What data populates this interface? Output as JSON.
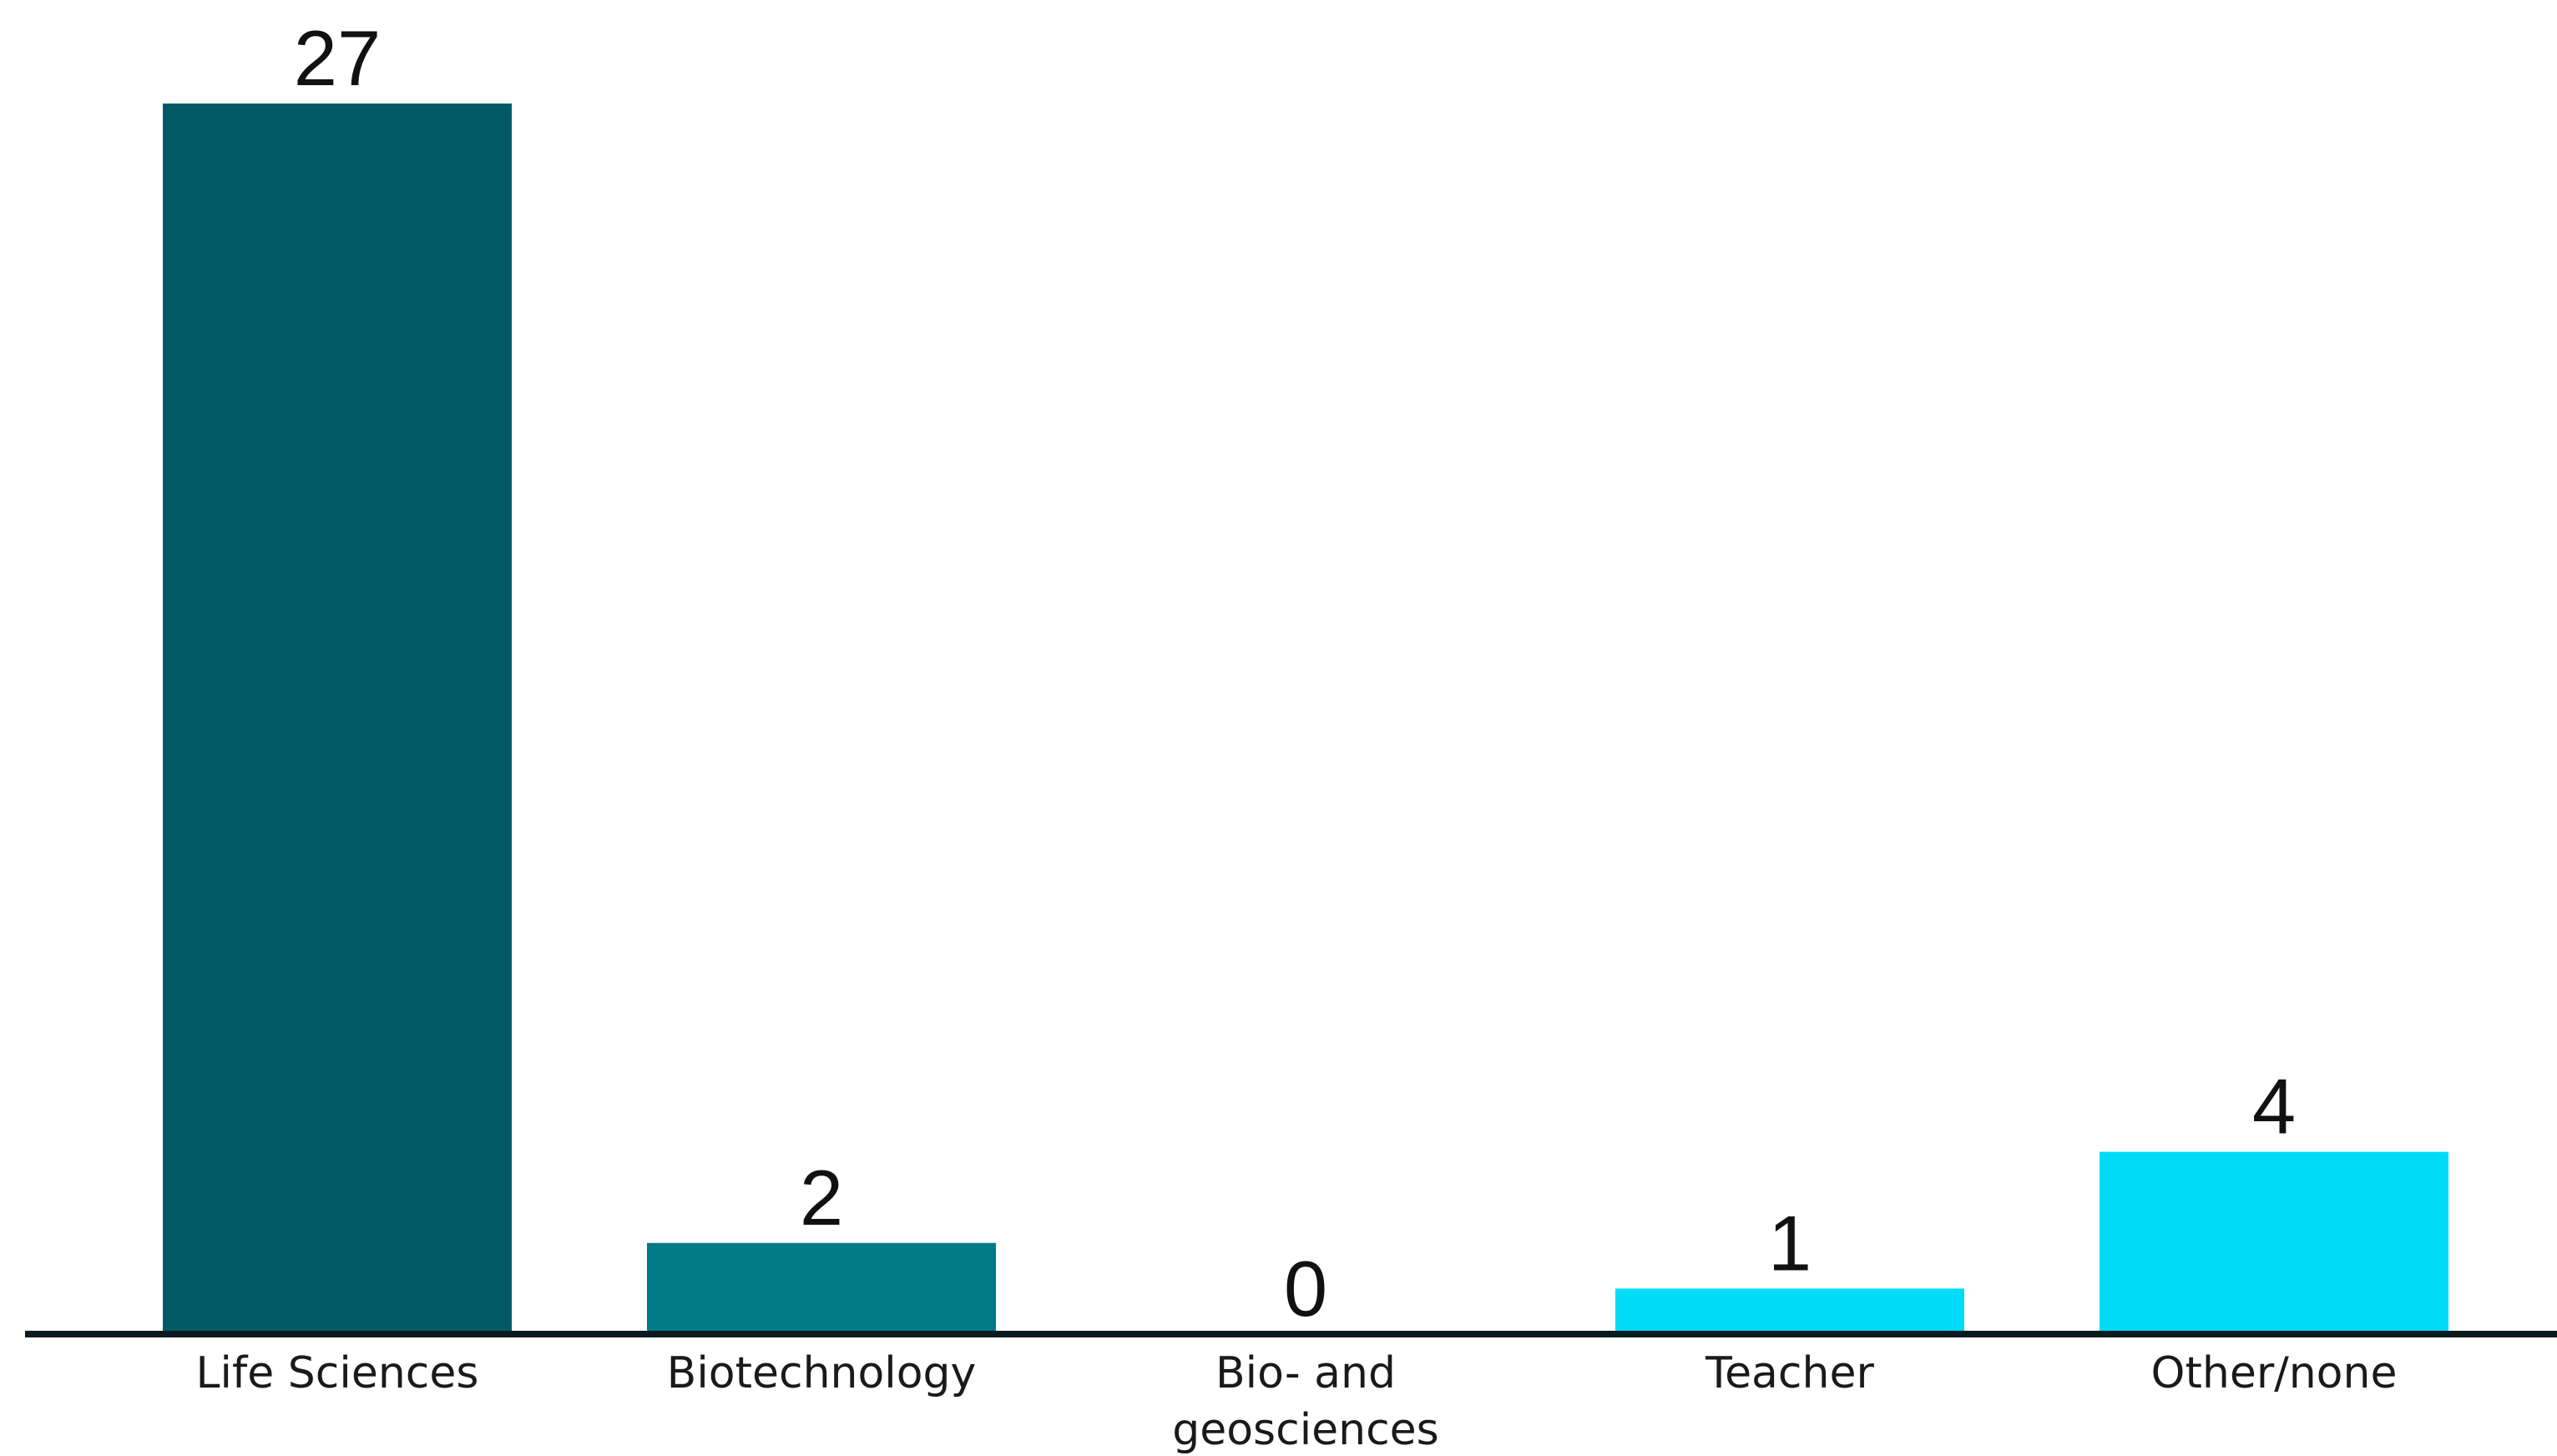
{
  "chart_data": {
    "type": "bar",
    "title": "",
    "xlabel": "",
    "ylabel": "",
    "categories": [
      "Life Sciences",
      "Biotechnology",
      "Bio- and geosciences",
      "Teacher",
      "Other/none"
    ],
    "category_lines": [
      [
        "Life Sciences"
      ],
      [
        "Biotechnology"
      ],
      [
        "Bio- and",
        "geosciences"
      ],
      [
        "Teacher"
      ],
      [
        "Other/none"
      ]
    ],
    "values": [
      27,
      2,
      0,
      1,
      4
    ],
    "colors": [
      "#005a66",
      "#007a87",
      "#00aabb",
      "#00dcf8",
      "#00dcf8"
    ],
    "axis_color": "#0a1a1e",
    "ylim": [
      0,
      27
    ],
    "grid": false,
    "legend": "none"
  }
}
